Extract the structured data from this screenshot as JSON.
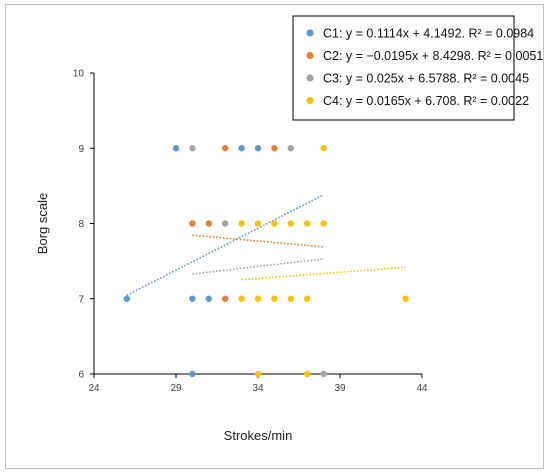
{
  "chart_data": {
    "type": "scatter",
    "title": "",
    "xlabel": "Strokes/min",
    "ylabel": "Borg scale",
    "xlim": [
      24,
      44
    ],
    "ylim": [
      6,
      10
    ],
    "xticks": [
      "24",
      "29",
      "34",
      "39",
      "44"
    ],
    "yticks": [
      "6",
      "7",
      "8",
      "9",
      "10"
    ],
    "legend_position": "top-right",
    "series": [
      {
        "name": "C1: y = 0.1114x + 4.1492. R² = 0.0984",
        "color": "#5b9bd5",
        "points": [
          [
            26,
            7
          ],
          [
            29,
            9
          ],
          [
            30,
            7
          ],
          [
            30,
            6
          ],
          [
            31,
            7
          ],
          [
            33,
            9
          ],
          [
            34,
            9
          ]
        ],
        "trend": {
          "x": [
            26,
            38
          ],
          "y": [
            7.046,
            8.382
          ]
        }
      },
      {
        "name": "C2: y = −0.0195x + 8.4298. R² = 0.0051",
        "color": "#ed7d31",
        "points": [
          [
            30,
            8
          ],
          [
            31,
            8
          ],
          [
            32,
            9
          ],
          [
            32,
            7
          ],
          [
            35,
            9
          ]
        ],
        "trend": {
          "x": [
            30,
            38
          ],
          "y": [
            7.845,
            7.689
          ]
        }
      },
      {
        "name": "C3: y = 0.025x + 6.5788. R² = 0.0045",
        "color": "#a5a5a5",
        "points": [
          [
            30,
            9
          ],
          [
            32,
            8
          ],
          [
            36,
            9
          ],
          [
            38,
            6
          ]
        ],
        "trend": {
          "x": [
            30,
            38
          ],
          "y": [
            7.329,
            7.529
          ]
        }
      },
      {
        "name": "C4: y = 0.0165x + 6.708. R² = 0.0022",
        "color": "#ffc000",
        "points": [
          [
            33,
            8
          ],
          [
            34,
            8
          ],
          [
            35,
            8
          ],
          [
            36,
            8
          ],
          [
            37,
            8
          ],
          [
            38,
            8
          ],
          [
            38,
            9
          ],
          [
            33,
            7
          ],
          [
            34,
            7
          ],
          [
            35,
            7
          ],
          [
            36,
            7
          ],
          [
            37,
            7
          ],
          [
            43,
            7
          ],
          [
            34,
            6
          ],
          [
            37,
            6
          ]
        ],
        "trend": {
          "x": [
            33,
            43
          ],
          "y": [
            7.253,
            7.418
          ]
        }
      }
    ]
  }
}
